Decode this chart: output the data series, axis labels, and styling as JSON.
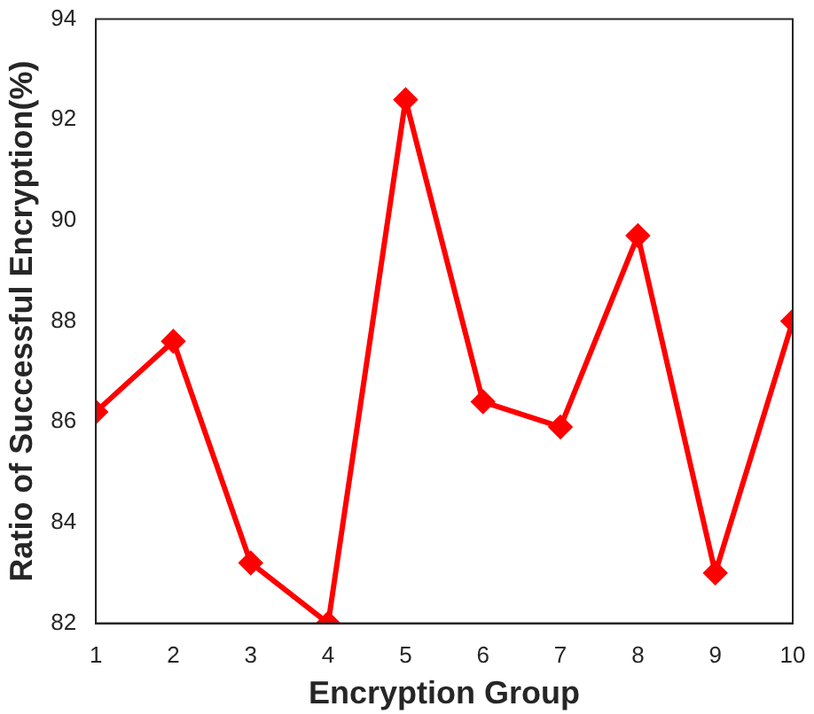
{
  "chart_data": {
    "type": "line",
    "xlabel": "Encryption Group",
    "ylabel": "Ratio of Successful Encryption(%)",
    "x": [
      1,
      2,
      3,
      4,
      5,
      6,
      7,
      8,
      9,
      10
    ],
    "series": [
      {
        "color": "#ff0000",
        "values": [
          86.2,
          87.6,
          83.2,
          82.0,
          92.4,
          86.4,
          85.9,
          89.7,
          83.0,
          88.0
        ]
      }
    ],
    "xlim": [
      1,
      10
    ],
    "xticks": [
      1,
      2,
      3,
      4,
      5,
      6,
      7,
      8,
      9,
      10
    ],
    "ylim": [
      82,
      94
    ],
    "yticks": [
      82,
      84,
      86,
      88,
      90,
      92,
      94
    ],
    "grid": false,
    "legend": false,
    "marker": "diamond",
    "line_style": "solid"
  }
}
